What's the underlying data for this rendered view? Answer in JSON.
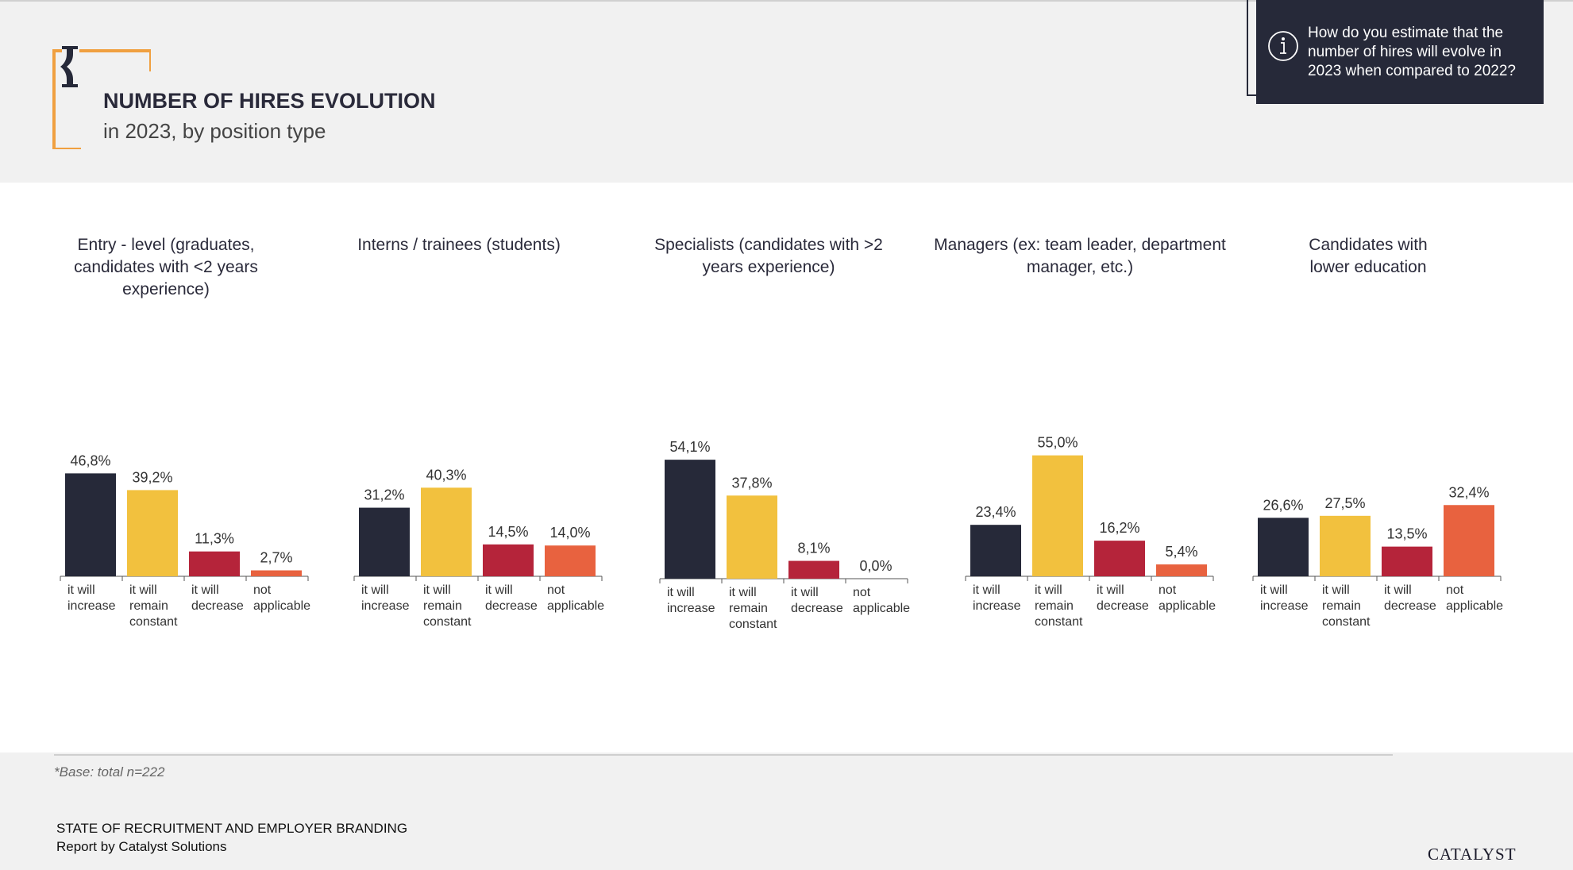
{
  "header": {
    "title": "NUMBER OF HIRES EVOLUTION",
    "subtitle": "in 2023, by position type",
    "question": "How do you estimate that the number of hires will evolve in 2023 when compared to 2022?"
  },
  "footer": {
    "base_note": "*Base: total n=222",
    "report_title": "STATE OF RECRUITMENT AND EMPLOYER BRANDING",
    "report_by": "Report by Catalyst Solutions",
    "logo": "CATALYST"
  },
  "colors": {
    "dark": "#262939",
    "yellow": "#F2C13E",
    "red": "#B5243A",
    "orange": "#E8623F",
    "accent": "#F0A040"
  },
  "icons": [
    "hourglass-icon",
    "info-icon"
  ],
  "chart_data": [
    {
      "type": "bar",
      "title": "Entry - level (graduates, candidates with <2 years experience)",
      "title_lines": [
        "Entry - level (graduates,",
        "candidates with <2 years",
        "experience)"
      ],
      "categories": [
        "it will increase",
        "it will remain constant",
        "it will decrease",
        "not applicable"
      ],
      "category_lines": [
        [
          "it will",
          "increase"
        ],
        [
          "it will",
          "remain",
          "constant"
        ],
        [
          "it will",
          "decrease"
        ],
        [
          "not",
          "applicable"
        ]
      ],
      "values": [
        46.8,
        39.2,
        11.3,
        2.7
      ],
      "labels": [
        "46,8%",
        "39,2%",
        "11,3%",
        "2,7%"
      ],
      "unit": "%"
    },
    {
      "type": "bar",
      "title": "Interns / trainees (students)",
      "title_lines": [
        "Interns / trainees (students)"
      ],
      "categories": [
        "it will increase",
        "it will remain constant",
        "it will decrease",
        "not applicable"
      ],
      "category_lines": [
        [
          "it will",
          "increase"
        ],
        [
          "it will",
          "remain",
          "constant"
        ],
        [
          "it will",
          "decrease"
        ],
        [
          "not",
          "applicable"
        ]
      ],
      "values": [
        31.2,
        40.3,
        14.5,
        14.0
      ],
      "labels": [
        "31,2%",
        "40,3%",
        "14,5%",
        "14,0%"
      ],
      "unit": "%"
    },
    {
      "type": "bar",
      "title": "Specialists (candidates with >2 years experience)",
      "title_lines": [
        "Specialists (candidates with >2",
        "years experience)"
      ],
      "categories": [
        "it will increase",
        "it will remain constant",
        "it will decrease",
        "not applicable"
      ],
      "category_lines": [
        [
          "it will",
          "increase"
        ],
        [
          "it will",
          "remain",
          "constant"
        ],
        [
          "it will",
          "decrease"
        ],
        [
          "not",
          "applicable"
        ]
      ],
      "values": [
        54.1,
        37.8,
        8.1,
        0.0
      ],
      "labels": [
        "54,1%",
        "37,8%",
        "8,1%",
        "0,0%"
      ],
      "unit": "%"
    },
    {
      "type": "bar",
      "title": "Managers (ex: team leader, department manager, etc.)",
      "title_lines": [
        "Managers (ex: team leader, department",
        "manager, etc.)"
      ],
      "categories": [
        "it will increase",
        "it will remain constant",
        "it will decrease",
        "not applicable"
      ],
      "category_lines": [
        [
          "it will",
          "increase"
        ],
        [
          "it will",
          "remain",
          "constant"
        ],
        [
          "it will",
          "decrease"
        ],
        [
          "not",
          "applicable"
        ]
      ],
      "values": [
        23.4,
        55.0,
        16.2,
        5.4
      ],
      "labels": [
        "23,4%",
        "55,0%",
        "16,2%",
        "5,4%"
      ],
      "unit": "%"
    },
    {
      "type": "bar",
      "title": "Candidates with lower education",
      "title_lines": [
        "Candidates with",
        "lower education"
      ],
      "categories": [
        "it will increase",
        "it will remain constant",
        "it will decrease",
        "not applicable"
      ],
      "category_lines": [
        [
          "it will",
          "increase"
        ],
        [
          "it will",
          "remain",
          "constant"
        ],
        [
          "it will",
          "decrease"
        ],
        [
          "not",
          "applicable"
        ]
      ],
      "values": [
        26.6,
        27.5,
        13.5,
        32.4
      ],
      "labels": [
        "26,6%",
        "27,5%",
        "13,5%",
        "32,4%"
      ],
      "unit": "%"
    }
  ]
}
